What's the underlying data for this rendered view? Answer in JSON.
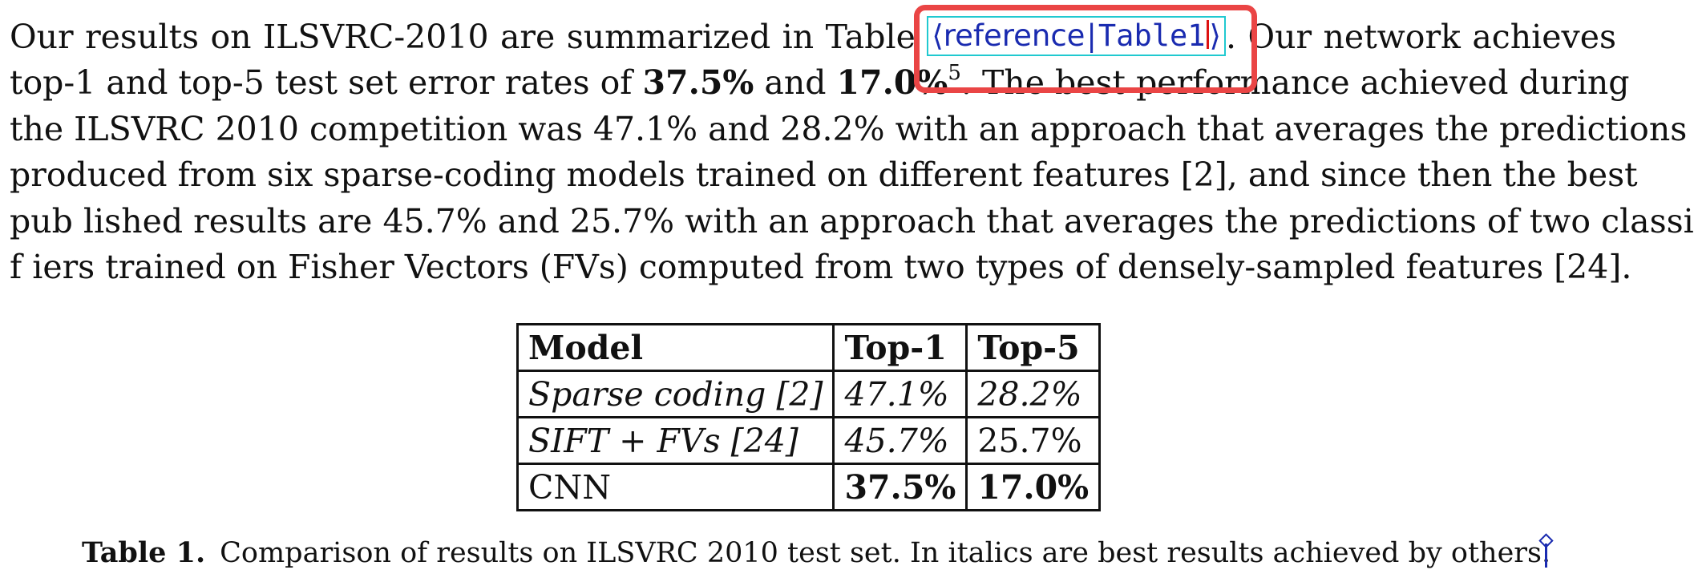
{
  "paragraph": {
    "line1_before": "Our results on ILSVRC-2010 are summarized in Table",
    "reference": {
      "open": "⟨",
      "kind": "reference",
      "separator": "|",
      "target": "Table1",
      "close": "⟩"
    },
    "line1_after": ". Our network achieves",
    "line2_a": "top-1 and top-5 test set error rates of ",
    "top1_rate": "37.5%",
    "line2_b": " and ",
    "top5_rate": "17.0%",
    "footnote": "5",
    "line2_c": ". The best performance achieved during",
    "line3": "the ILSVRC 2010 competition was 47.1% and 28.2% with an approach that averages the predictions",
    "line4": "produced from six sparse-coding models trained on different features [2], and since then the best",
    "line5": "pub lished results are 45.7% and 25.7% with an approach that averages the predictions of two classi",
    "line6": "f iers trained on Fisher Vectors (FVs) computed from two types of densely-sampled features [24]."
  },
  "table": {
    "headers": [
      "Model",
      "Top-1",
      "Top-5"
    ],
    "rows": [
      [
        "Sparse coding [2]",
        "47.1%",
        "28.2%"
      ],
      [
        "SIFT + FVs [24]",
        "45.7%",
        "25.7%"
      ],
      [
        "CNN",
        "37.5%",
        "17.0%"
      ]
    ]
  },
  "caption": {
    "label": "Table 1.",
    "text": "Comparison of results on ILSVRC 2010 test set. In italics are best results achieved by others."
  },
  "colors": {
    "reference_text": "#1a2bb0",
    "reference_border": "#20c9d0",
    "highlight_box": "#ea4545",
    "cursor": "#d11111"
  },
  "icons": {
    "anchor": "anchor-icon",
    "cursor": "text-cursor"
  }
}
